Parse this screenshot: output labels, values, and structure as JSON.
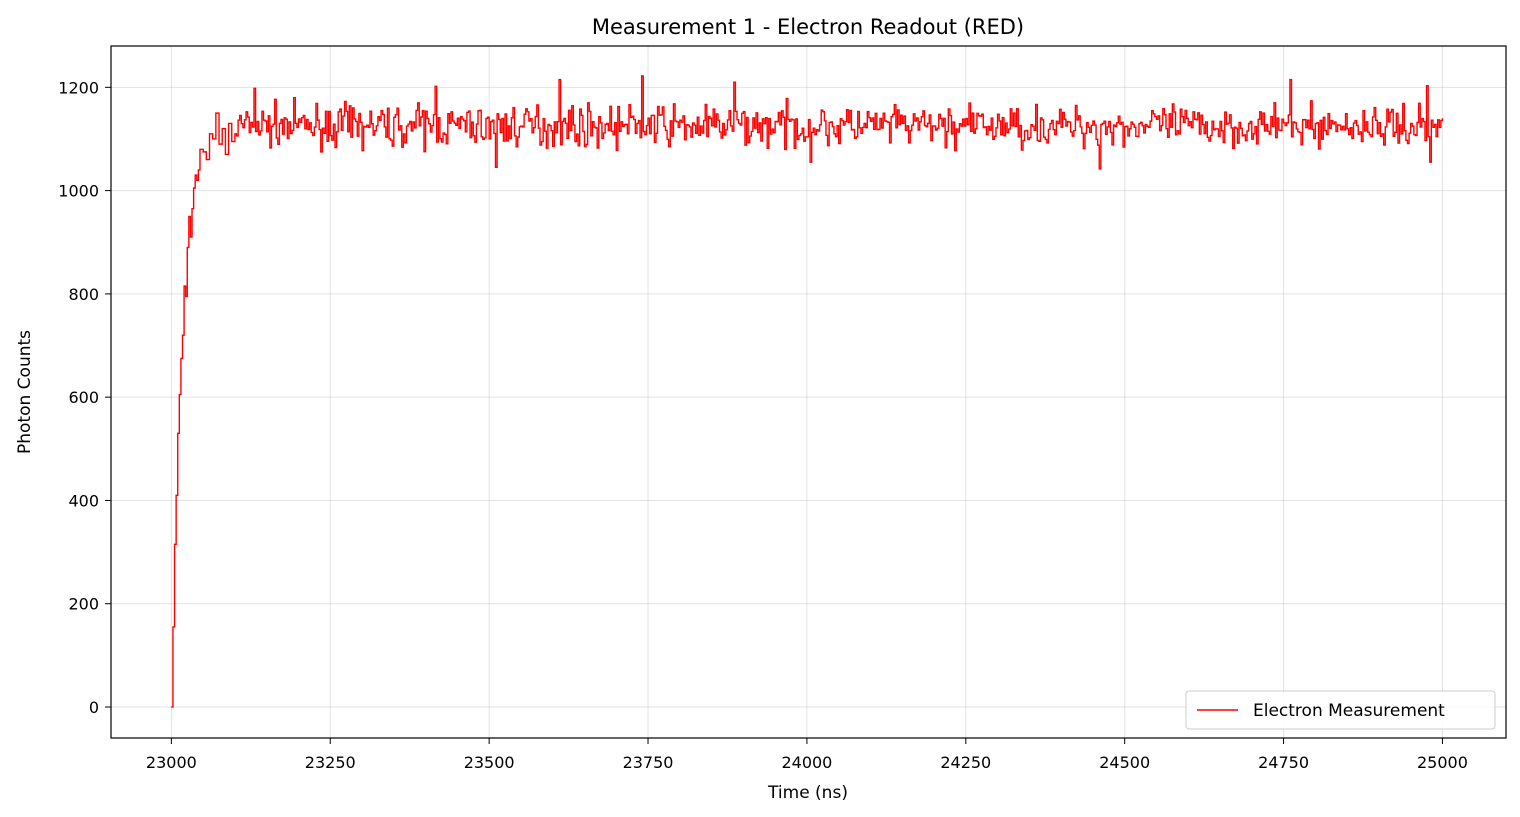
{
  "chart_data": {
    "type": "line",
    "title": "Measurement 1 - Electron Readout (RED)",
    "xlabel": "Time (ns)",
    "ylabel": "Photon Counts",
    "xlim": [
      22905,
      25100
    ],
    "ylim": [
      -60,
      1280
    ],
    "xticks": [
      23000,
      23250,
      23500,
      23750,
      24000,
      24250,
      24500,
      24750,
      25000
    ],
    "yticks": [
      0,
      200,
      400,
      600,
      800,
      1000,
      1200
    ],
    "grid": true,
    "legend_position": "lower-right",
    "series": [
      {
        "name": "Electron Measurement",
        "color": "#ff0000",
        "drawstyle": "steps-post",
        "x_start": 23000,
        "x_step": 2.5,
        "rise": {
          "x": [
            23000,
            23002.5,
            23005,
            23007.5,
            23010,
            23012.5,
            23015,
            23017.5,
            23020,
            23022.5,
            23025,
            23027.5,
            23030,
            23032.5,
            23035,
            23037.5,
            23040,
            23042.5,
            23045,
            23050,
            23055,
            23060,
            23065,
            23070,
            23075,
            23080,
            23085,
            23090,
            23095,
            23100
          ],
          "y": [
            0,
            155,
            315,
            410,
            530,
            605,
            675,
            720,
            815,
            795,
            890,
            950,
            910,
            965,
            1005,
            1030,
            1020,
            1040,
            1080,
            1075,
            1060,
            1110,
            1100,
            1150,
            1090,
            1120,
            1070,
            1130,
            1095,
            1110
          ]
        },
        "plateau": {
          "x_start": 23100,
          "x_end": 25000,
          "mean": 1125,
          "noise_amplitude": 30,
          "peaks": [
            {
              "x": 23130,
              "y": 1198
            },
            {
              "x": 23415,
              "y": 1202
            },
            {
              "x": 23610,
              "y": 1215
            },
            {
              "x": 23740,
              "y": 1222
            },
            {
              "x": 23885,
              "y": 1210
            },
            {
              "x": 24760,
              "y": 1215
            },
            {
              "x": 24975,
              "y": 1203
            }
          ],
          "dips": [
            {
              "x": 23510,
              "y": 1045
            },
            {
              "x": 24005,
              "y": 1055
            },
            {
              "x": 24460,
              "y": 1042
            },
            {
              "x": 24980,
              "y": 1055
            }
          ]
        },
        "x_end": 25000,
        "y_end": 1140
      }
    ]
  }
}
